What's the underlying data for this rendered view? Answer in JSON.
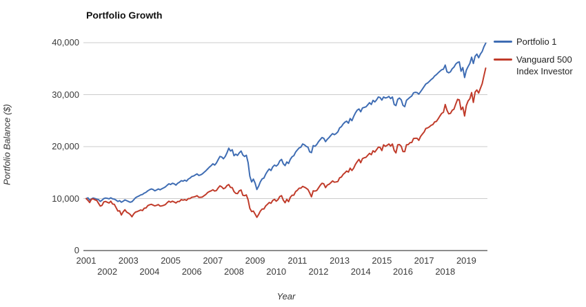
{
  "title": "Portfolio Growth",
  "axes": {
    "y_label": "Portfolio Balance ($)",
    "x_label": "Year"
  },
  "colors": {
    "series_blue": "#3e6cb3",
    "series_red": "#c03b2a",
    "gridline": "#cbcbcb",
    "axis_line": "#666666",
    "text": "#3a3a3a"
  },
  "chart_data": {
    "type": "line",
    "title": "Portfolio Growth",
    "xlabel": "Year",
    "ylabel": "Portfolio Balance ($)",
    "x_unit": "month",
    "x_start": "2001-01",
    "x_end": "2019-12",
    "x_tick_years": [
      2001,
      2002,
      2003,
      2004,
      2005,
      2006,
      2007,
      2008,
      2009,
      2010,
      2011,
      2012,
      2013,
      2014,
      2015,
      2016,
      2017,
      2018,
      2019
    ],
    "ylim": [
      0,
      40000
    ],
    "y_ticks": [
      {
        "value": 0,
        "label": "0"
      },
      {
        "value": 10000,
        "label": "10,000"
      },
      {
        "value": 20000,
        "label": "20,000"
      },
      {
        "value": 30000,
        "label": "30,000"
      },
      {
        "value": 40000,
        "label": "40,000"
      }
    ],
    "grid": "horizontal-only",
    "legend_position": "right",
    "series": [
      {
        "name": "Portfolio 1",
        "color": "#3e6cb3",
        "values": [
          10000,
          10150,
          9700,
          9950,
          10100,
          10000,
          9900,
          9800,
          9450,
          9700,
          10000,
          10100,
          10050,
          9950,
          10150,
          9950,
          9900,
          9700,
          9450,
          9600,
          9300,
          9500,
          9750,
          9600,
          9450,
          9300,
          9400,
          9750,
          10150,
          10350,
          10500,
          10700,
          10800,
          11050,
          11200,
          11500,
          11700,
          11850,
          11750,
          11500,
          11650,
          11850,
          11700,
          11900,
          12050,
          12250,
          12550,
          12850,
          12700,
          12950,
          12850,
          12600,
          12950,
          13150,
          13450,
          13350,
          13550,
          13350,
          13750,
          13950,
          14250,
          14350,
          14550,
          14750,
          14450,
          14550,
          14750,
          15050,
          15350,
          15700,
          16050,
          16350,
          16700,
          16450,
          16850,
          17500,
          18100,
          18000,
          17650,
          18100,
          18800,
          19700,
          19150,
          19400,
          18250,
          18550,
          18300,
          18800,
          19150,
          18400,
          18100,
          18350,
          16900,
          14300,
          13200,
          13750,
          12950,
          11750,
          12400,
          13250,
          13800,
          13950,
          14700,
          15250,
          15700,
          15400,
          16100,
          16450,
          16250,
          16550,
          17250,
          17550,
          16700,
          16350,
          17050,
          16750,
          17550,
          18050,
          18250,
          18950,
          19350,
          19750,
          19900,
          20500,
          20350,
          20050,
          19900,
          19000,
          18850,
          20200,
          20050,
          20400,
          20950,
          21350,
          21750,
          21600,
          20950,
          21400,
          21750,
          22150,
          22500,
          22300,
          22500,
          22850,
          23600,
          23850,
          24350,
          24700,
          24900,
          24500,
          25400,
          25000,
          25800,
          26500,
          27000,
          27250,
          26700,
          27450,
          27550,
          27650,
          28050,
          28450,
          28100,
          28900,
          28600,
          29000,
          29550,
          29450,
          28950,
          29550,
          29350,
          29450,
          29650,
          29250,
          29550,
          28100,
          27900,
          29100,
          29350,
          29000,
          27950,
          27700,
          28900,
          29200,
          29500,
          29750,
          30350,
          30450,
          30400,
          30100,
          30550,
          31050,
          31550,
          32050,
          32250,
          32550,
          32900,
          33150,
          33600,
          33850,
          34200,
          34500,
          34800,
          34900,
          35700,
          34400,
          34200,
          34400,
          35000,
          35300,
          35900,
          36200,
          36300,
          34500,
          35200,
          33300,
          34700,
          35400,
          36000,
          37200,
          36000,
          37400,
          37800,
          37100,
          37800,
          38300,
          39200,
          39900
        ]
      },
      {
        "name": "Vanguard 500 Index Investor",
        "color": "#c03b2a",
        "values": [
          10000,
          9650,
          9250,
          9900,
          9950,
          9750,
          9650,
          9100,
          8550,
          8700,
          9350,
          9450,
          9300,
          9150,
          9500,
          8950,
          8900,
          8250,
          7600,
          7650,
          6850,
          7450,
          7850,
          7400,
          7200,
          6950,
          6500,
          7050,
          7400,
          7500,
          7650,
          7800,
          7700,
          8150,
          8200,
          8650,
          8800,
          8900,
          8750,
          8600,
          8700,
          8850,
          8550,
          8600,
          8700,
          8850,
          9200,
          9500,
          9300,
          9500,
          9350,
          9150,
          9450,
          9450,
          9800,
          9700,
          9800,
          9650,
          10000,
          10000,
          10250,
          10300,
          10400,
          10550,
          10250,
          10250,
          10300,
          10550,
          10800,
          11150,
          11350,
          11500,
          11700,
          11450,
          11550,
          12050,
          12450,
          12250,
          11900,
          12050,
          12500,
          12700,
          12150,
          12100,
          11350,
          11000,
          10950,
          11500,
          11650,
          10650,
          10550,
          10700,
          9750,
          8100,
          7500,
          7600,
          7000,
          6400,
          6950,
          7600,
          8000,
          8000,
          8600,
          8900,
          9250,
          9100,
          9650,
          9850,
          9500,
          9800,
          10400,
          10550,
          9700,
          9200,
          9850,
          9400,
          10250,
          10650,
          10650,
          11350,
          11600,
          12000,
          12000,
          12350,
          12200,
          12000,
          11750,
          11100,
          10350,
          11500,
          11450,
          11550,
          12050,
          12550,
          12950,
          12850,
          12100,
          12600,
          12750,
          13050,
          13400,
          13150,
          13200,
          13300,
          14000,
          14150,
          14650,
          14950,
          15300,
          15100,
          15850,
          15400,
          15850,
          16600,
          17100,
          17550,
          16900,
          17700,
          17850,
          17950,
          18350,
          18700,
          18450,
          19200,
          18950,
          19400,
          19900,
          19850,
          19250,
          20350,
          20050,
          20250,
          20500,
          20100,
          20500,
          19250,
          18800,
          20350,
          20400,
          20050,
          19050,
          19050,
          20350,
          20400,
          20750,
          20800,
          21550,
          21600,
          21600,
          21200,
          21950,
          22400,
          22800,
          23500,
          23600,
          23800,
          24100,
          24250,
          24750,
          24850,
          25350,
          25900,
          26400,
          26600,
          28100,
          27000,
          26300,
          26400,
          27000,
          27200,
          28200,
          29100,
          29000,
          27100,
          27600,
          25900,
          27900,
          28800,
          29200,
          30400,
          28500,
          30500,
          30900,
          30300,
          31200,
          32100,
          33600,
          35100
        ]
      }
    ]
  }
}
